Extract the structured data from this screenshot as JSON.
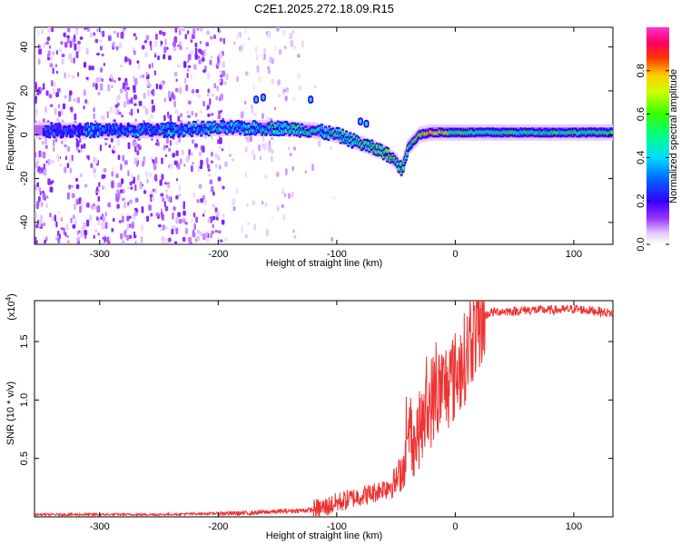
{
  "title": "C2E1.2025.272.18.09.R15",
  "chart_data": [
    {
      "type": "heatmap",
      "xlabel": "Height of straight line (km)",
      "ylabel": "Frequency (Hz)",
      "xlim": [
        -355,
        133
      ],
      "ylim": [
        -50,
        49
      ],
      "xticks": [
        -300,
        -200,
        -100,
        0,
        100
      ],
      "xtick_labels": [
        "-300",
        "-200",
        "-100",
        "0",
        "100"
      ],
      "yticks": [
        -40,
        -20,
        0,
        20,
        40
      ],
      "ytick_labels": [
        "-40",
        "-20",
        "0",
        "20",
        "40"
      ],
      "ridge": {
        "x": [
          -345,
          -300,
          -250,
          -200,
          -150,
          -120,
          -100,
          -80,
          -60,
          -50,
          -45,
          -40,
          -30,
          -20,
          0,
          50,
          100,
          133
        ],
        "freq": [
          2,
          2,
          2,
          3,
          3,
          2,
          0,
          -4,
          -8,
          -12,
          -16,
          -6,
          0,
          1,
          1,
          1,
          1,
          1
        ],
        "amplitude": [
          0.25,
          0.3,
          0.35,
          0.4,
          0.45,
          0.45,
          0.45,
          0.5,
          0.55,
          0.6,
          0.5,
          0.5,
          0.65,
          0.8,
          0.55,
          0.5,
          0.5,
          0.5
        ]
      },
      "colorbar": {
        "label": "Normalized spectral amplitude",
        "range": [
          0,
          1
        ],
        "ticks": [
          0.0,
          0.2,
          0.4,
          0.6,
          0.8
        ],
        "tick_labels": [
          "0.0",
          "0.2",
          "0.4",
          "0.6",
          "0.8"
        ]
      }
    },
    {
      "type": "line",
      "xlabel": "Height of straight line (km)",
      "ylabel": "SNR (10 * v/v)",
      "multiplier": "(x10",
      "multiplier_exp": "4",
      "multiplier_close": ")",
      "xlim": [
        -355,
        133
      ],
      "ylim": [
        0,
        1.85
      ],
      "xticks": [
        -300,
        -200,
        -100,
        0,
        100
      ],
      "xtick_labels": [
        "-300",
        "-200",
        "-100",
        "0",
        "100"
      ],
      "yticks": [
        0.5,
        1.0,
        1.5
      ],
      "ytick_labels": [
        "0.5",
        "1.0",
        "1.5"
      ],
      "color": "#ee3333",
      "series": {
        "name": "SNR",
        "x": [
          -355,
          -300,
          -250,
          -200,
          -180,
          -160,
          -140,
          -120,
          -110,
          -100,
          -90,
          -80,
          -70,
          -60,
          -50,
          -45,
          -40,
          -38,
          -35,
          -30,
          -25,
          -20,
          -15,
          -10,
          -5,
          0,
          5,
          10,
          15,
          20,
          25,
          30,
          40,
          50,
          60,
          70,
          80,
          90,
          100,
          110,
          120,
          133
        ],
        "values": [
          0.02,
          0.02,
          0.02,
          0.03,
          0.03,
          0.04,
          0.05,
          0.06,
          0.08,
          0.12,
          0.15,
          0.18,
          0.2,
          0.25,
          0.3,
          0.4,
          0.55,
          0.8,
          0.6,
          0.75,
          0.85,
          1.0,
          1.05,
          1.1,
          1.15,
          1.2,
          1.3,
          1.4,
          1.55,
          1.65,
          1.72,
          1.75,
          1.76,
          1.76,
          1.77,
          1.77,
          1.77,
          1.77,
          1.78,
          1.77,
          1.76,
          1.74
        ]
      }
    }
  ]
}
